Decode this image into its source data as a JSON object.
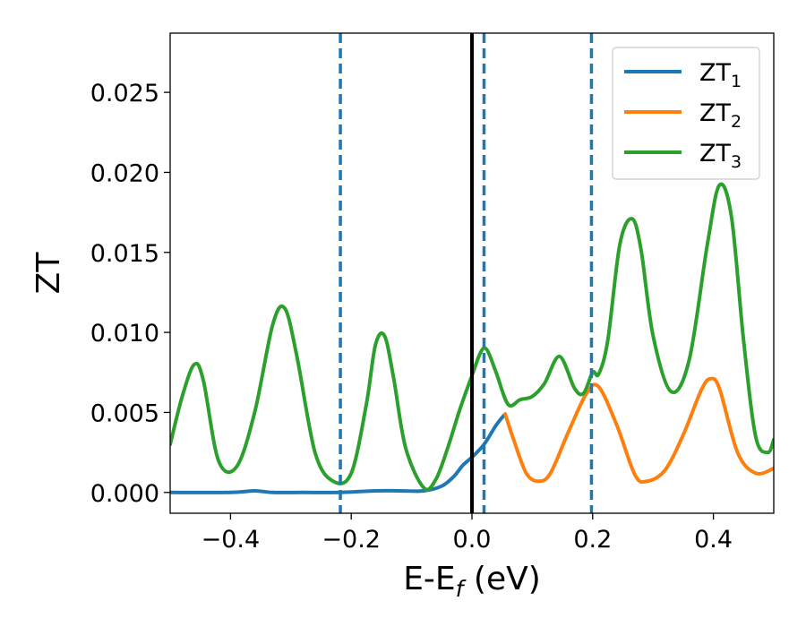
{
  "chart_data": {
    "type": "line",
    "xlabel": "E-E",
    "xlabel_sub": "f",
    "xlabel_unit": " (eV)",
    "ylabel": "ZT",
    "xlim": [
      -0.5,
      0.5
    ],
    "ylim": [
      -0.0013,
      0.0287
    ],
    "xticks": [
      -0.4,
      -0.2,
      0.0,
      0.2,
      0.4
    ],
    "xtick_labels": [
      "−0.4",
      "−0.2",
      "0.0",
      "0.2",
      "0.4"
    ],
    "yticks": [
      0.0,
      0.005,
      0.01,
      0.015,
      0.02,
      0.025
    ],
    "ytick_labels": [
      "0.000",
      "0.005",
      "0.010",
      "0.015",
      "0.020",
      "0.025"
    ],
    "grid": false,
    "legend_position": "top-right",
    "series": [
      {
        "name": "ZT",
        "name_sub": "1",
        "color": "#1f77b4",
        "x": [
          -0.5,
          -0.4,
          -0.36,
          -0.33,
          -0.28,
          -0.22,
          -0.16,
          -0.12,
          -0.08,
          -0.05,
          -0.03,
          -0.015,
          0.0,
          0.02,
          0.04,
          0.055
        ],
        "y": [
          0.0,
          0.0,
          0.0001,
          0.0,
          0.0,
          0.0,
          0.0001,
          0.0001,
          0.0001,
          0.0004,
          0.001,
          0.0017,
          0.0022,
          0.003,
          0.0042,
          0.0049
        ]
      },
      {
        "name": "ZT",
        "name_sub": "2",
        "color": "#ff7f0e",
        "x": [
          0.055,
          0.07,
          0.09,
          0.11,
          0.13,
          0.16,
          0.19,
          0.21,
          0.24,
          0.27,
          0.29,
          0.32,
          0.35,
          0.38,
          0.395,
          0.41,
          0.44,
          0.47,
          0.5
        ],
        "y": [
          0.0049,
          0.0032,
          0.0012,
          0.0007,
          0.0012,
          0.0038,
          0.0062,
          0.0066,
          0.0042,
          0.0011,
          0.0007,
          0.0014,
          0.0036,
          0.0064,
          0.0071,
          0.0065,
          0.0025,
          0.0012,
          0.0015
        ]
      },
      {
        "name": "ZT",
        "name_sub": "3",
        "color": "#2ca02c",
        "x": [
          -0.5,
          -0.48,
          -0.46,
          -0.445,
          -0.42,
          -0.39,
          -0.36,
          -0.33,
          -0.31,
          -0.29,
          -0.26,
          -0.23,
          -0.2,
          -0.175,
          -0.16,
          -0.145,
          -0.13,
          -0.11,
          -0.08,
          -0.06,
          -0.04,
          -0.02,
          0.0,
          0.015,
          0.025,
          0.04,
          0.06,
          0.08,
          0.1,
          0.12,
          0.145,
          0.17,
          0.185,
          0.2,
          0.21,
          0.225,
          0.245,
          0.265,
          0.28,
          0.3,
          0.33,
          0.36,
          0.39,
          0.41,
          0.43,
          0.45,
          0.47,
          0.49,
          0.5
        ],
        "y": [
          0.003,
          0.006,
          0.008,
          0.007,
          0.002,
          0.0016,
          0.005,
          0.0105,
          0.0115,
          0.0085,
          0.0025,
          0.0007,
          0.0012,
          0.0055,
          0.0092,
          0.0098,
          0.0072,
          0.0028,
          0.0003,
          0.0008,
          0.0028,
          0.0052,
          0.0073,
          0.0088,
          0.0089,
          0.0075,
          0.0055,
          0.0058,
          0.006,
          0.0068,
          0.0085,
          0.0065,
          0.0062,
          0.0075,
          0.0074,
          0.0095,
          0.0155,
          0.0171,
          0.0152,
          0.0098,
          0.0063,
          0.0083,
          0.0155,
          0.0192,
          0.0172,
          0.0095,
          0.0035,
          0.0025,
          0.0033
        ]
      }
    ],
    "reference_lines": [
      {
        "style": "solid",
        "x": 0.0,
        "color": "#000000"
      },
      {
        "style": "dashed",
        "x": -0.218,
        "color": "#1f77b4"
      },
      {
        "style": "dashed",
        "x": 0.02,
        "color": "#1f77b4"
      },
      {
        "style": "dashed",
        "x": 0.198,
        "color": "#1f77b4"
      }
    ]
  }
}
